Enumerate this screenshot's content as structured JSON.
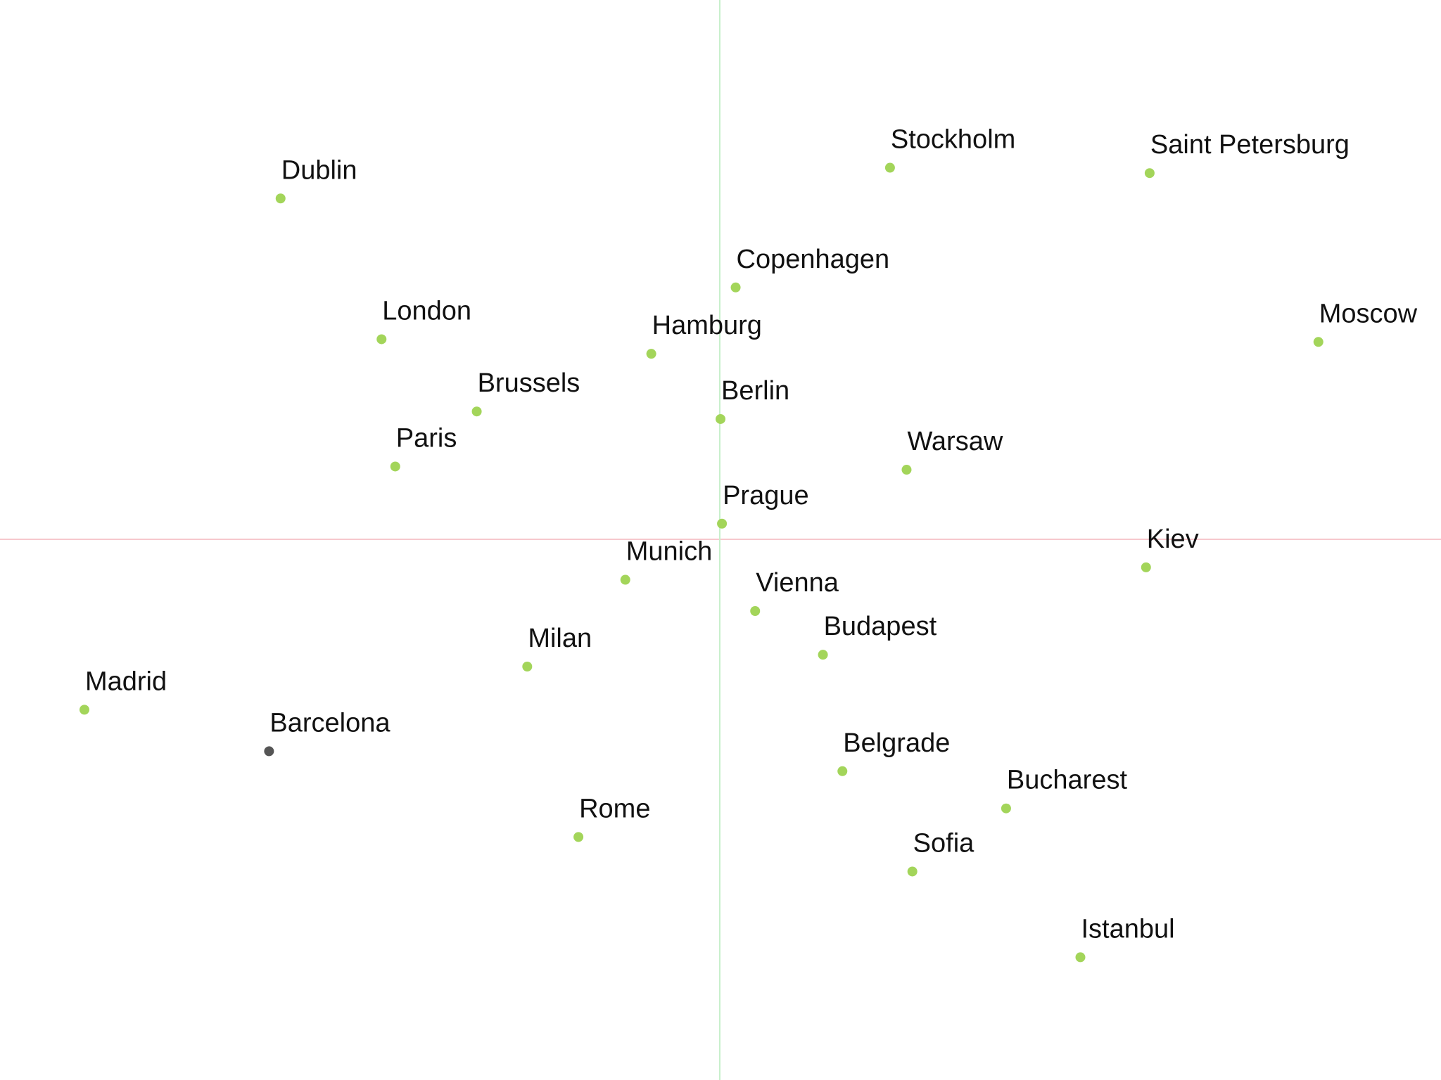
{
  "chart_data": {
    "type": "scatter",
    "title": "",
    "xlabel": "",
    "ylabel": "",
    "xlim": [
      -1.0,
      1.0
    ],
    "ylim": [
      -1.0,
      1.0
    ],
    "grid": false,
    "legend": "none",
    "axis_lines": {
      "horizontal_color": "#f7c8cd",
      "vertical_color": "#c8f0cc"
    },
    "colors": {
      "point": "#a3d55a",
      "highlight_point": "#555555",
      "label": "#111111"
    },
    "points": [
      {
        "label": "Dublin",
        "x": -0.609,
        "y": 0.632
      },
      {
        "label": "London",
        "x": -0.469,
        "y": 0.371
      },
      {
        "label": "Brussels",
        "x": -0.337,
        "y": 0.237
      },
      {
        "label": "Paris",
        "x": -0.45,
        "y": 0.135
      },
      {
        "label": "Hamburg",
        "x": -0.095,
        "y": 0.344
      },
      {
        "label": "Copenhagen",
        "x": 0.022,
        "y": 0.467
      },
      {
        "label": "Stockholm",
        "x": 0.236,
        "y": 0.689
      },
      {
        "label": "Saint Petersburg",
        "x": 0.596,
        "y": 0.679
      },
      {
        "label": "Moscow",
        "x": 0.83,
        "y": 0.366
      },
      {
        "label": "Berlin",
        "x": 0.001,
        "y": 0.223
      },
      {
        "label": "Warsaw",
        "x": 0.259,
        "y": 0.129
      },
      {
        "label": "Prague",
        "x": 0.003,
        "y": 0.029
      },
      {
        "label": "Kiev",
        "x": 0.591,
        "y": -0.052
      },
      {
        "label": "Munich",
        "x": -0.131,
        "y": -0.075
      },
      {
        "label": "Vienna",
        "x": 0.049,
        "y": -0.133
      },
      {
        "label": "Budapest",
        "x": 0.143,
        "y": -0.214
      },
      {
        "label": "Milan",
        "x": -0.267,
        "y": -0.236
      },
      {
        "label": "Madrid",
        "x": -0.881,
        "y": -0.316
      },
      {
        "label": "Barcelona",
        "x": -0.625,
        "y": -0.393,
        "highlight": true
      },
      {
        "label": "Belgrade",
        "x": 0.17,
        "y": -0.43
      },
      {
        "label": "Bucharest",
        "x": 0.397,
        "y": -0.499
      },
      {
        "label": "Rome",
        "x": -0.196,
        "y": -0.552
      },
      {
        "label": "Sofia",
        "x": 0.267,
        "y": -0.616
      },
      {
        "label": "Istanbul",
        "x": 0.5,
        "y": -0.775
      }
    ]
  }
}
